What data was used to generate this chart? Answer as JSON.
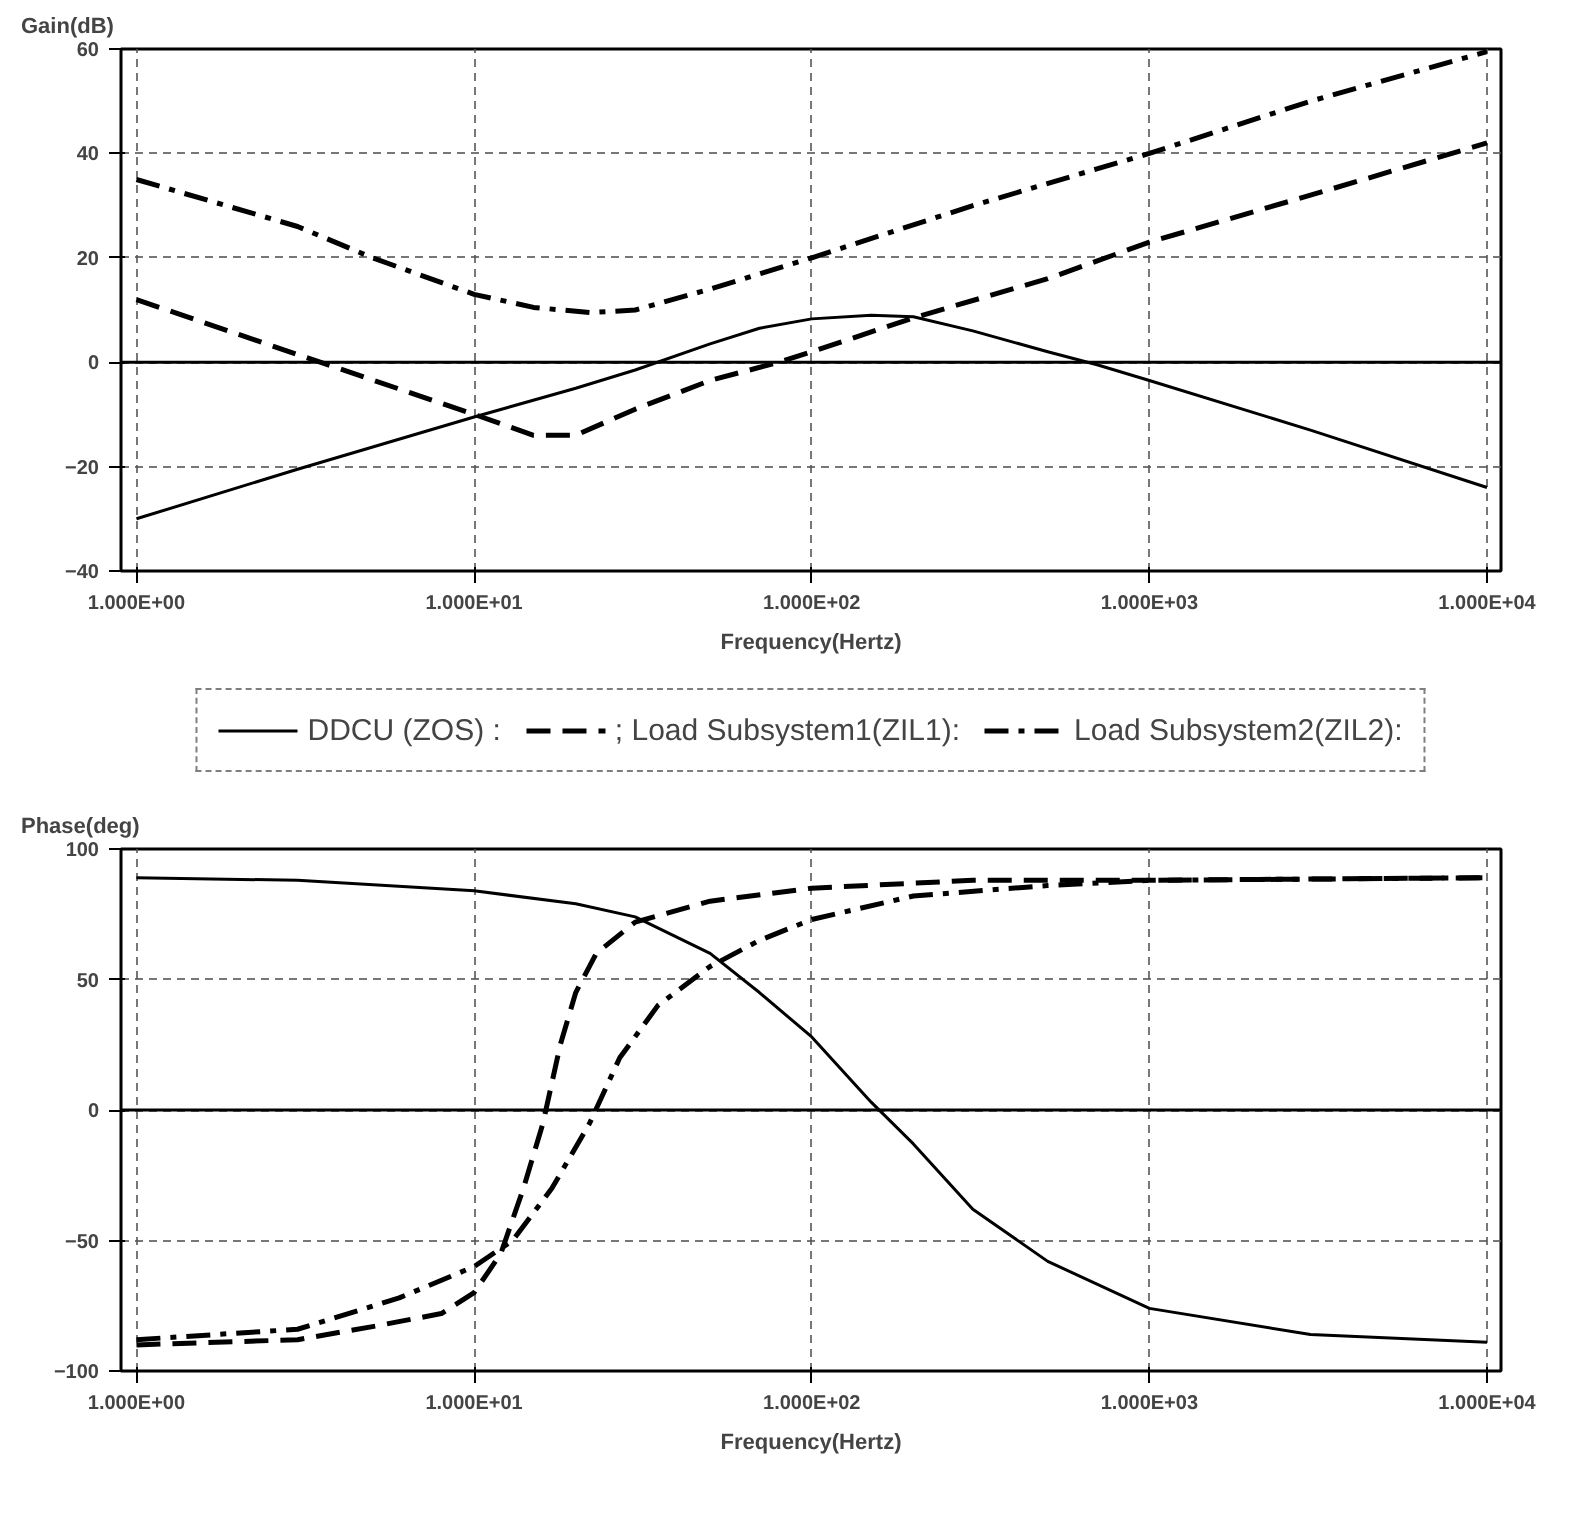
{
  "chart_data": [
    {
      "type": "line",
      "ylabel": "Gain(dB)",
      "xlabel": "Frequency(Hertz)",
      "log": "x",
      "grid": true,
      "legend": "bottom",
      "xlim": [
        0.9,
        11000
      ],
      "xticks": [
        {
          "value": 1,
          "label": "1.000E+00"
        },
        {
          "value": 10,
          "label": "1.000E+01"
        },
        {
          "value": 100,
          "label": "1.000E+02"
        },
        {
          "value": 1000,
          "label": "1.000E+03"
        },
        {
          "value": 10000,
          "label": "1.000E+04"
        }
      ],
      "ylim": [
        -40,
        60
      ],
      "yticks": [
        -40,
        -20,
        0,
        20,
        40,
        60
      ],
      "ref_lines": [
        {
          "axis": "y",
          "value": 0,
          "color": "#000000",
          "line_style": "solid"
        }
      ],
      "series": [
        {
          "name": "DDCU (ZOS) :",
          "color": "#000000",
          "line_style": "solid",
          "x": [
            1,
            3,
            10,
            20,
            30,
            50,
            70,
            100,
            150,
            200,
            300,
            500,
            700,
            1000,
            3000,
            10000
          ],
          "values": [
            -30,
            -20.5,
            -10.5,
            -5,
            -1.5,
            3.5,
            6.5,
            8.3,
            9,
            8.7,
            6,
            2,
            -0.5,
            -3.5,
            -13,
            -24
          ]
        },
        {
          "name": "; Load Subsystem1(ZIL1):",
          "color": "#000000",
          "line_style": "dashed",
          "x": [
            1,
            3.5,
            10,
            15,
            20,
            30,
            50,
            80,
            100,
            200,
            500,
            1000,
            3000,
            10000
          ],
          "values": [
            12,
            0,
            -10,
            -14,
            -14,
            -9,
            -3.5,
            0,
            2,
            8.5,
            16,
            23,
            32,
            42
          ]
        },
        {
          "name": "Load Subsystem2(ZIL2):",
          "color": "#000000",
          "line_style": "dashdot",
          "x": [
            1,
            3,
            5,
            10,
            15,
            22,
            30,
            50,
            100,
            300,
            1000,
            3000,
            10000
          ],
          "values": [
            35,
            26,
            20,
            13,
            10.5,
            9.5,
            10,
            14,
            20,
            30,
            40,
            50,
            59.5
          ]
        }
      ]
    },
    {
      "type": "line",
      "ylabel": "Phase(deg)",
      "xlabel": "Frequency(Hertz)",
      "log": "x",
      "grid": true,
      "xlim": [
        0.9,
        11000
      ],
      "xticks": [
        {
          "value": 1,
          "label": "1.000E+00"
        },
        {
          "value": 10,
          "label": "1.000E+01"
        },
        {
          "value": 100,
          "label": "1.000E+02"
        },
        {
          "value": 1000,
          "label": "1.000E+03"
        },
        {
          "value": 10000,
          "label": "1.000E+04"
        }
      ],
      "ylim": [
        -100,
        100
      ],
      "yticks": [
        -100,
        -50,
        0,
        50,
        100
      ],
      "ref_lines": [
        {
          "axis": "y",
          "value": 0,
          "color": "#000000",
          "line_style": "solid"
        }
      ],
      "series": [
        {
          "color": "#000000",
          "line_style": "solid",
          "x": [
            1,
            3,
            10,
            20,
            30,
            50,
            70,
            100,
            150,
            200,
            300,
            500,
            1000,
            3000,
            10000
          ],
          "values": [
            89,
            88,
            84,
            79,
            74,
            60,
            45,
            28,
            3,
            -13,
            -38,
            -58,
            -76,
            -86,
            -89
          ]
        },
        {
          "color": "#000000",
          "line_style": "dashed",
          "x": [
            1,
            3,
            5,
            8,
            10,
            12,
            14,
            16,
            18,
            20,
            23,
            30,
            50,
            100,
            300,
            1000,
            10000
          ],
          "values": [
            -90,
            -88,
            -83,
            -78,
            -70,
            -55,
            -30,
            -5,
            25,
            45,
            60,
            72,
            80,
            85,
            88,
            88,
            89
          ]
        },
        {
          "color": "#000000",
          "line_style": "dashdot",
          "x": [
            1,
            3,
            6,
            10,
            13,
            17,
            22,
            27,
            35,
            50,
            70,
            100,
            200,
            500,
            1000,
            10000
          ],
          "values": [
            -88,
            -84,
            -72,
            -60,
            -50,
            -30,
            -5,
            20,
            40,
            55,
            65,
            73,
            82,
            86,
            88,
            89
          ]
        }
      ]
    }
  ]
}
